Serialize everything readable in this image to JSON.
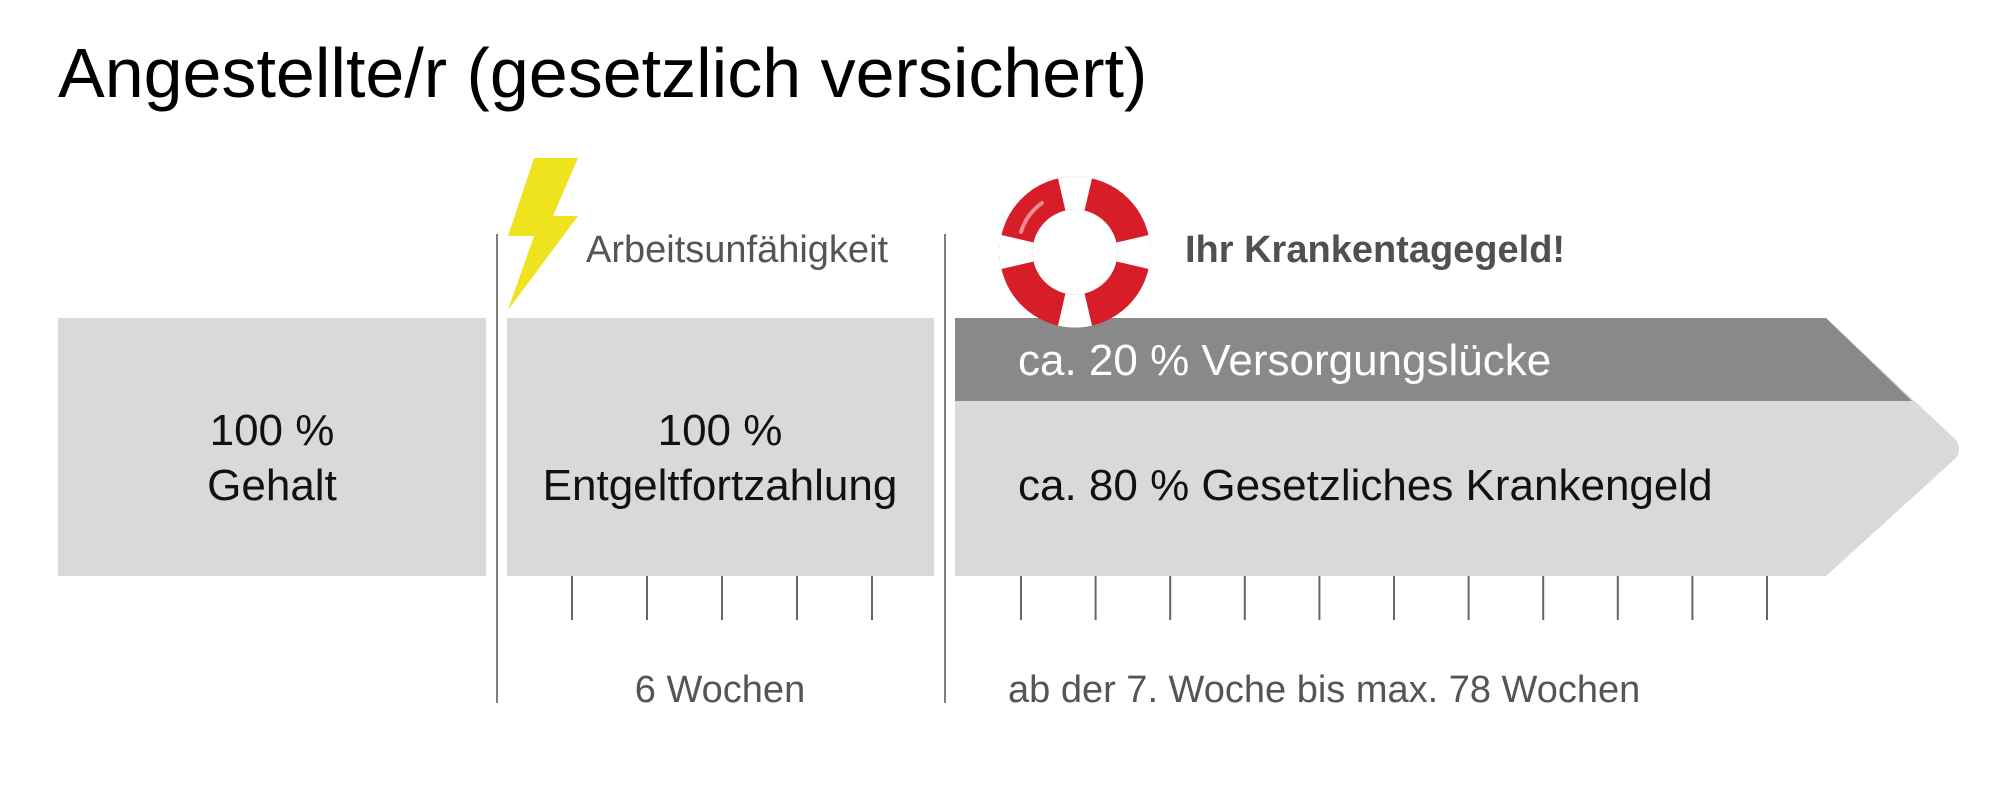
{
  "title": "Angestellte/r (gesetzlich versichert)",
  "colors": {
    "box": "#d9d9d9",
    "gap_band": "#898989",
    "divider": "#7f7f7f",
    "tick": "#666666",
    "lightning": "#efe31d",
    "lifebuoy_red": "#d61d28",
    "lifebuoy_white": "#ffffff"
  },
  "icons": {
    "event": "lightning-bolt-icon",
    "support": "lifebuoy-icon"
  },
  "labels": {
    "incapacity": "Arbeitsunfähigkeit",
    "daily_allowance": "Ihr Krankentagegeld!"
  },
  "boxes": {
    "salary": {
      "percent": "100 %",
      "label": "Gehalt"
    },
    "continued_pay": {
      "percent": "100 %",
      "label": "Entgeltfortzahlung"
    },
    "statutory": {
      "gap_label": "ca. 20 % Versorgungslücke",
      "sick_pay_label": "ca. 80 % Gesetzliches Krankengeld"
    }
  },
  "durations": {
    "continued_pay": "6 Wochen",
    "statutory": "ab der 7. Woche bis max. 78 Wochen"
  },
  "ticks": {
    "continued_pay_count": 5,
    "statutory_count": 11
  }
}
